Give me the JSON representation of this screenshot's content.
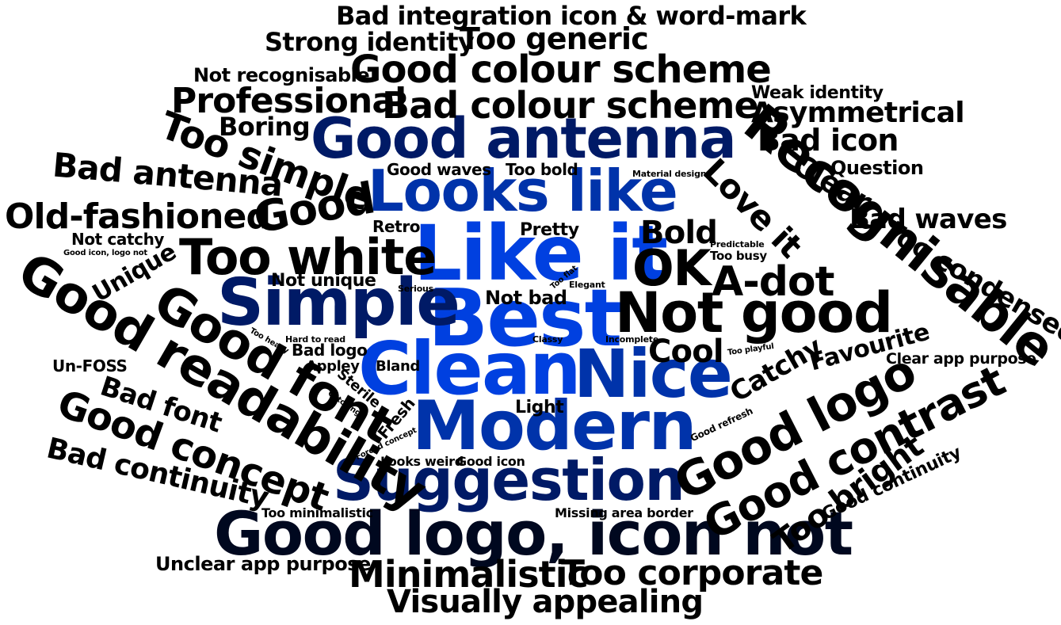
{
  "words": [
    {
      "text": "Best",
      "color": "#0040e0"
    },
    {
      "text": "Like it",
      "color": "#0040e0"
    },
    {
      "text": "Clean",
      "color": "#0040e0"
    },
    {
      "text": "Modern",
      "color": "#0033aa"
    },
    {
      "text": "Looks like",
      "color": "#0033aa"
    },
    {
      "text": "Nice",
      "color": "#0033aa"
    },
    {
      "text": "Simple",
      "color": "#001a66"
    },
    {
      "text": "Suggestion",
      "color": "#001a66"
    },
    {
      "text": "Good antenna",
      "color": "#001a66"
    },
    {
      "text": "Good logo, icon not",
      "color": "#00081f"
    },
    {
      "text": "Recognisable",
      "color": "#000000"
    },
    {
      "text": "Not good",
      "color": "#000000"
    },
    {
      "text": "Good readability",
      "color": "#000000"
    },
    {
      "text": "Good font",
      "color": "#000000"
    },
    {
      "text": "Good colour scheme",
      "color": "#000000"
    },
    {
      "text": "Bad colour scheme",
      "color": "#000000"
    },
    {
      "text": "Too white",
      "color": "#000000"
    },
    {
      "text": "OK",
      "color": "#000000"
    },
    {
      "text": "A-dot",
      "color": "#000000"
    },
    {
      "text": "Good logo",
      "color": "#000000"
    },
    {
      "text": "Good contrast",
      "color": "#000000"
    },
    {
      "text": "Good concept",
      "color": "#000000"
    },
    {
      "text": "Minimalistic",
      "color": "#000000"
    },
    {
      "text": "Too corporate",
      "color": "#000000"
    },
    {
      "text": "Visually appealing",
      "color": "#000000"
    },
    {
      "text": "Too simple",
      "color": "#000000"
    },
    {
      "text": "Good",
      "color": "#000000"
    },
    {
      "text": "Old-fashioned",
      "color": "#000000"
    },
    {
      "text": "Bad antenna",
      "color": "#000000"
    },
    {
      "text": "Professional",
      "color": "#000000"
    },
    {
      "text": "Too generic",
      "color": "#000000"
    },
    {
      "text": "Bad integration icon & word-mark",
      "color": "#000000"
    },
    {
      "text": "Strong identity",
      "color": "#000000"
    },
    {
      "text": "Not recognisable",
      "color": "#000000"
    },
    {
      "text": "Boring",
      "color": "#000000"
    },
    {
      "text": "Love it",
      "color": "#000000"
    },
    {
      "text": "Clear",
      "color": "#000000"
    },
    {
      "text": "Bad icon",
      "color": "#000000"
    },
    {
      "text": "Asymmetrical",
      "color": "#000000"
    },
    {
      "text": "Weak identity",
      "color": "#000000"
    },
    {
      "text": "Question",
      "color": "#000000"
    },
    {
      "text": "Bad waves",
      "color": "#000000"
    },
    {
      "text": "Too condensed",
      "color": "#000000"
    },
    {
      "text": "Bold",
      "color": "#000000"
    },
    {
      "text": "Cool",
      "color": "#000000"
    },
    {
      "text": "Catchy",
      "color": "#000000"
    },
    {
      "text": "Favourite",
      "color": "#000000"
    },
    {
      "text": "Too bright",
      "color": "#000000"
    },
    {
      "text": "Good continuity",
      "color": "#000000"
    },
    {
      "text": "Bad continuity",
      "color": "#000000"
    },
    {
      "text": "Bad font",
      "color": "#000000"
    },
    {
      "text": "Unique",
      "color": "#000000"
    },
    {
      "text": "Not catchy",
      "color": "#000000"
    },
    {
      "text": "Good icon, logo not",
      "color": "#000000"
    },
    {
      "text": "Un-FOSS",
      "color": "#000000"
    },
    {
      "text": "Unclear app purpose",
      "color": "#000000"
    },
    {
      "text": "Clear app purpose",
      "color": "#000000"
    },
    {
      "text": "Good waves",
      "color": "#000000"
    },
    {
      "text": "Too bold",
      "color": "#000000"
    },
    {
      "text": "Material design",
      "color": "#000000"
    },
    {
      "text": "Retro",
      "color": "#000000"
    },
    {
      "text": "Pretty",
      "color": "#000000"
    },
    {
      "text": "Predictable",
      "color": "#000000"
    },
    {
      "text": "Too busy",
      "color": "#000000"
    },
    {
      "text": "Not unique",
      "color": "#000000"
    },
    {
      "text": "Serious",
      "color": "#000000"
    },
    {
      "text": "Too flat",
      "color": "#000000"
    },
    {
      "text": "Elegant",
      "color": "#000000"
    },
    {
      "text": "Not bad",
      "color": "#000000"
    },
    {
      "text": "Hard to read",
      "color": "#000000"
    },
    {
      "text": "Too heavy",
      "color": "#000000"
    },
    {
      "text": "Bad logo",
      "color": "#000000"
    },
    {
      "text": "Classy",
      "color": "#000000"
    },
    {
      "text": "Incomplete",
      "color": "#000000"
    },
    {
      "text": "Too playful",
      "color": "#000000"
    },
    {
      "text": "Appley",
      "color": "#000000"
    },
    {
      "text": "Bland",
      "color": "#000000"
    },
    {
      "text": "Sterile",
      "color": "#000000"
    },
    {
      "text": "Catching",
      "color": "#000000"
    },
    {
      "text": "Fresh",
      "color": "#000000"
    },
    {
      "text": "Forced concept",
      "color": "#000000"
    },
    {
      "text": "Light",
      "color": "#000000"
    },
    {
      "text": "Good refresh",
      "color": "#000000"
    },
    {
      "text": "Looks weird",
      "color": "#000000"
    },
    {
      "text": "Good icon",
      "color": "#000000"
    },
    {
      "text": "Too minimalistic",
      "color": "#000000"
    },
    {
      "text": "Missing area border",
      "color": "#000000"
    }
  ]
}
